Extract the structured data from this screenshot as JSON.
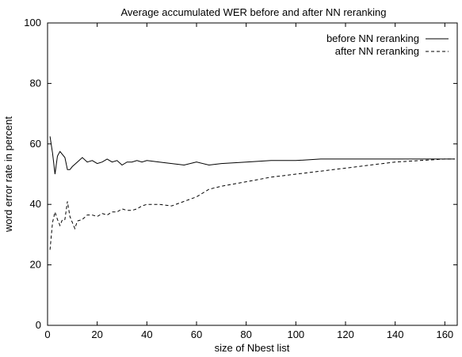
{
  "chart_data": {
    "type": "line",
    "title": "Average accumulated WER before and after NN reranking",
    "xlabel": "size of Nbest list",
    "ylabel": "word error rate in percent",
    "xlim": [
      0,
      165
    ],
    "ylim": [
      0,
      100
    ],
    "x_ticks": [
      0,
      20,
      40,
      60,
      80,
      100,
      120,
      140,
      160
    ],
    "y_ticks": [
      0,
      20,
      40,
      60,
      80,
      100
    ],
    "x_tick_labels": [
      "0",
      "20",
      "40",
      "60",
      "80",
      "100",
      "120",
      "140",
      "160"
    ],
    "y_tick_labels": [
      "0",
      "20",
      "40",
      "60",
      "80",
      "100"
    ],
    "grid": false,
    "legend_position": "top-right",
    "series": [
      {
        "name": "before NN reranking",
        "style": "solid",
        "x": [
          1,
          2,
          3,
          4,
          5,
          6,
          7,
          8,
          9,
          10,
          12,
          14,
          16,
          18,
          20,
          22,
          24,
          26,
          28,
          30,
          32,
          34,
          36,
          38,
          40,
          45,
          50,
          55,
          60,
          65,
          70,
          80,
          90,
          100,
          110,
          120,
          130,
          140,
          150,
          160,
          164
        ],
        "y": [
          62.5,
          57,
          50,
          56,
          57.5,
          56.5,
          55.5,
          51.5,
          51.5,
          52.5,
          54,
          55.5,
          54,
          54.5,
          53.5,
          54,
          55,
          54,
          54.5,
          53,
          54,
          54,
          54.5,
          54,
          54.5,
          54,
          53.5,
          53,
          54,
          53,
          53.5,
          54,
          54.5,
          54.5,
          55,
          55,
          55,
          55,
          55,
          55,
          55
        ]
      },
      {
        "name": "after NN reranking",
        "style": "dashed",
        "x": [
          1,
          2,
          3,
          4,
          5,
          6,
          7,
          8,
          9,
          10,
          11,
          12,
          14,
          16,
          18,
          20,
          22,
          24,
          26,
          28,
          30,
          32,
          34,
          36,
          38,
          40,
          45,
          50,
          55,
          60,
          65,
          70,
          80,
          90,
          100,
          110,
          120,
          130,
          140,
          150,
          160,
          164
        ],
        "y": [
          25,
          34,
          37.5,
          35,
          33,
          35,
          35,
          41,
          36,
          34,
          32,
          34.5,
          35,
          36.5,
          36.5,
          36,
          37,
          36.5,
          37.5,
          37.5,
          38.5,
          38,
          38,
          38.5,
          39.5,
          40,
          40,
          39.5,
          41,
          42.5,
          45,
          46,
          47.5,
          49,
          50,
          51,
          52,
          53,
          54,
          54.5,
          55,
          55
        ]
      }
    ]
  }
}
